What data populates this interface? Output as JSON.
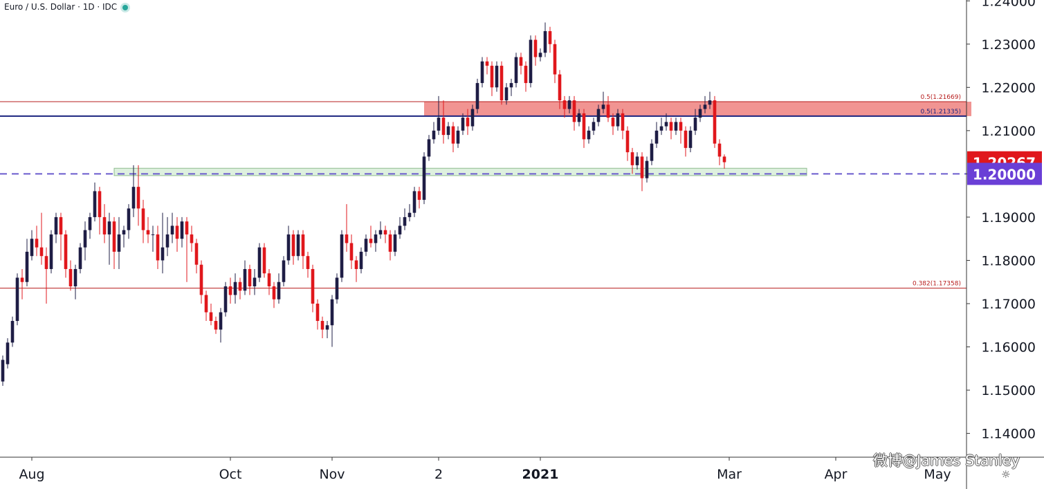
{
  "header": {
    "title": "Euro / U.S. Dollar · 1D · IDC"
  },
  "watermark": "微博@James Stanley",
  "colors": {
    "up": "#1e1d45",
    "down": "#e0171c",
    "resistance_zone": "#f08886",
    "support_zone": "#c8e6c9",
    "navy_line": "#1a237e",
    "dashed_line": "#6a5acd",
    "fib_line": "#b71c1c",
    "last_price_bg": "#e0171c",
    "level_bg": "#6a3fd6"
  },
  "chart_data": {
    "type": "candlestick",
    "title": "Euro / U.S. Dollar · 1D · IDC",
    "ylim": [
      1.1345,
      1.2402
    ],
    "y_ticks": [
      "1.24000",
      "1.23000",
      "1.22000",
      "1.21000",
      "1.20000",
      "1.19000",
      "1.18000",
      "1.17000",
      "1.16000",
      "1.15000",
      "1.14000"
    ],
    "x_ticks": [
      {
        "label": "Aug",
        "index": 6
      },
      {
        "label": "Oct",
        "index": 47
      },
      {
        "label": "Nov",
        "index": 68
      },
      {
        "label": "2",
        "index": 90
      },
      {
        "label": "2021",
        "index": 111
      },
      {
        "label": "Mar",
        "index": 150
      },
      {
        "label": "Apr",
        "index": 172
      },
      {
        "label": "May",
        "index": 193
      }
    ],
    "last_price": "1.20267",
    "key_level": "1.20000",
    "fib_lines": [
      {
        "label": "0.5(1.21669)",
        "value": 1.21669
      },
      {
        "label": "0.5(1.21335)",
        "value": 1.21335
      },
      {
        "label": "0.382(1.17358)",
        "value": 1.17358
      }
    ],
    "zones": [
      {
        "name": "resistance",
        "from": 1.21335,
        "to": 1.21669,
        "start_index": 87,
        "end_index": 200
      },
      {
        "name": "support",
        "from": 1.1996,
        "to": 1.2013,
        "start_index": 23,
        "end_index": 166
      }
    ],
    "horizontal_lines": [
      {
        "name": "navy-line",
        "value": 1.21335
      },
      {
        "name": "dashed-line",
        "value": 1.2
      }
    ],
    "candles": [
      [
        1.152,
        1.157,
        1.151,
        1.158
      ],
      [
        1.156,
        1.161,
        1.155,
        1.162
      ],
      [
        1.161,
        1.166,
        1.16,
        1.167
      ],
      [
        1.166,
        1.176,
        1.165,
        1.177
      ],
      [
        1.176,
        1.175,
        1.171,
        1.178
      ],
      [
        1.175,
        1.182,
        1.174,
        1.185
      ],
      [
        1.181,
        1.185,
        1.18,
        1.187
      ],
      [
        1.185,
        1.183,
        1.181,
        1.188
      ],
      [
        1.183,
        1.181,
        1.179,
        1.191
      ],
      [
        1.181,
        1.178,
        1.17,
        1.183
      ],
      [
        1.178,
        1.186,
        1.177,
        1.187
      ],
      [
        1.186,
        1.19,
        1.184,
        1.191
      ],
      [
        1.19,
        1.186,
        1.18,
        1.191
      ],
      [
        1.186,
        1.178,
        1.176,
        1.187
      ],
      [
        1.178,
        1.174,
        1.173,
        1.18
      ],
      [
        1.174,
        1.178,
        1.171,
        1.179
      ],
      [
        1.178,
        1.183,
        1.177,
        1.184
      ],
      [
        1.183,
        1.187,
        1.18,
        1.189
      ],
      [
        1.187,
        1.19,
        1.185,
        1.191
      ],
      [
        1.19,
        1.196,
        1.189,
        1.198
      ],
      [
        1.196,
        1.19,
        1.186,
        1.197
      ],
      [
        1.19,
        1.186,
        1.184,
        1.193
      ],
      [
        1.186,
        1.189,
        1.179,
        1.191
      ],
      [
        1.189,
        1.182,
        1.178,
        1.19
      ],
      [
        1.182,
        1.186,
        1.178,
        1.19
      ],
      [
        1.186,
        1.187,
        1.183,
        1.188
      ],
      [
        1.187,
        1.192,
        1.185,
        1.193
      ],
      [
        1.192,
        1.197,
        1.19,
        1.202
      ],
      [
        1.197,
        1.192,
        1.188,
        1.202
      ],
      [
        1.192,
        1.187,
        1.184,
        1.194
      ],
      [
        1.187,
        1.186,
        1.184,
        1.19
      ],
      [
        1.186,
        1.186,
        1.182,
        1.188
      ],
      [
        1.186,
        1.18,
        1.178,
        1.188
      ],
      [
        1.18,
        1.183,
        1.177,
        1.191
      ],
      [
        1.183,
        1.186,
        1.181,
        1.19
      ],
      [
        1.186,
        1.188,
        1.184,
        1.191
      ],
      [
        1.188,
        1.185,
        1.182,
        1.19
      ],
      [
        1.185,
        1.189,
        1.183,
        1.19
      ],
      [
        1.189,
        1.186,
        1.175,
        1.19
      ],
      [
        1.186,
        1.184,
        1.182,
        1.188
      ],
      [
        1.184,
        1.179,
        1.177,
        1.185
      ],
      [
        1.179,
        1.172,
        1.17,
        1.18
      ],
      [
        1.172,
        1.168,
        1.166,
        1.173
      ],
      [
        1.168,
        1.166,
        1.165,
        1.17
      ],
      [
        1.166,
        1.164,
        1.163,
        1.167
      ],
      [
        1.164,
        1.168,
        1.161,
        1.169
      ],
      [
        1.168,
        1.174,
        1.167,
        1.175
      ],
      [
        1.174,
        1.172,
        1.17,
        1.176
      ],
      [
        1.172,
        1.175,
        1.17,
        1.177
      ],
      [
        1.175,
        1.173,
        1.171,
        1.176
      ],
      [
        1.173,
        1.178,
        1.172,
        1.18
      ],
      [
        1.178,
        1.174,
        1.172,
        1.179
      ],
      [
        1.174,
        1.176,
        1.172,
        1.178
      ],
      [
        1.176,
        1.183,
        1.175,
        1.184
      ],
      [
        1.183,
        1.177,
        1.176,
        1.184
      ],
      [
        1.177,
        1.174,
        1.172,
        1.178
      ],
      [
        1.174,
        1.171,
        1.169,
        1.175
      ],
      [
        1.171,
        1.175,
        1.17,
        1.177
      ],
      [
        1.175,
        1.18,
        1.174,
        1.181
      ],
      [
        1.18,
        1.186,
        1.179,
        1.188
      ],
      [
        1.186,
        1.181,
        1.179,
        1.187
      ],
      [
        1.181,
        1.186,
        1.18,
        1.187
      ],
      [
        1.186,
        1.181,
        1.178,
        1.187
      ],
      [
        1.181,
        1.178,
        1.176,
        1.182
      ],
      [
        1.178,
        1.17,
        1.168,
        1.179
      ],
      [
        1.17,
        1.166,
        1.164,
        1.171
      ],
      [
        1.166,
        1.164,
        1.162,
        1.167
      ],
      [
        1.164,
        1.165,
        1.162,
        1.166
      ],
      [
        1.165,
        1.171,
        1.16,
        1.172
      ],
      [
        1.171,
        1.176,
        1.17,
        1.177
      ],
      [
        1.176,
        1.186,
        1.175,
        1.187
      ],
      [
        1.186,
        1.184,
        1.182,
        1.193
      ],
      [
        1.184,
        1.18,
        1.178,
        1.186
      ],
      [
        1.18,
        1.178,
        1.175,
        1.181
      ],
      [
        1.178,
        1.182,
        1.177,
        1.183
      ],
      [
        1.182,
        1.185,
        1.181,
        1.186
      ],
      [
        1.185,
        1.184,
        1.183,
        1.188
      ],
      [
        1.184,
        1.186,
        1.182,
        1.187
      ],
      [
        1.186,
        1.187,
        1.185,
        1.189
      ],
      [
        1.187,
        1.186,
        1.184,
        1.188
      ],
      [
        1.186,
        1.182,
        1.18,
        1.187
      ],
      [
        1.182,
        1.186,
        1.181,
        1.187
      ],
      [
        1.186,
        1.188,
        1.185,
        1.19
      ],
      [
        1.188,
        1.19,
        1.187,
        1.192
      ],
      [
        1.19,
        1.191,
        1.189,
        1.193
      ],
      [
        1.191,
        1.196,
        1.19,
        1.197
      ],
      [
        1.196,
        1.194,
        1.192,
        1.197
      ],
      [
        1.194,
        1.204,
        1.193,
        1.205
      ],
      [
        1.204,
        1.208,
        1.203,
        1.209
      ],
      [
        1.208,
        1.21,
        1.207,
        1.212
      ],
      [
        1.21,
        1.213,
        1.209,
        1.218
      ],
      [
        1.213,
        1.209,
        1.207,
        1.217
      ],
      [
        1.209,
        1.211,
        1.208,
        1.212
      ],
      [
        1.211,
        1.207,
        1.205,
        1.212
      ],
      [
        1.207,
        1.21,
        1.206,
        1.211
      ],
      [
        1.21,
        1.213,
        1.209,
        1.214
      ],
      [
        1.213,
        1.211,
        1.209,
        1.215
      ],
      [
        1.211,
        1.215,
        1.21,
        1.216
      ],
      [
        1.215,
        1.221,
        1.214,
        1.222
      ],
      [
        1.221,
        1.226,
        1.22,
        1.227
      ],
      [
        1.226,
        1.225,
        1.223,
        1.227
      ],
      [
        1.225,
        1.22,
        1.218,
        1.226
      ],
      [
        1.22,
        1.225,
        1.219,
        1.226
      ],
      [
        1.225,
        1.217,
        1.216,
        1.226
      ],
      [
        1.217,
        1.22,
        1.216,
        1.221
      ],
      [
        1.22,
        1.221,
        1.218,
        1.222
      ],
      [
        1.221,
        1.227,
        1.22,
        1.228
      ],
      [
        1.227,
        1.225,
        1.223,
        1.228
      ],
      [
        1.225,
        1.221,
        1.219,
        1.226
      ],
      [
        1.221,
        1.231,
        1.22,
        1.232
      ],
      [
        1.231,
        1.227,
        1.225,
        1.232
      ],
      [
        1.227,
        1.228,
        1.226,
        1.229
      ],
      [
        1.228,
        1.233,
        1.227,
        1.235
      ],
      [
        1.233,
        1.23,
        1.228,
        1.234
      ],
      [
        1.23,
        1.223,
        1.221,
        1.231
      ],
      [
        1.223,
        1.217,
        1.215,
        1.224
      ],
      [
        1.217,
        1.215,
        1.213,
        1.218
      ],
      [
        1.215,
        1.217,
        1.214,
        1.218
      ],
      [
        1.217,
        1.212,
        1.21,
        1.218
      ],
      [
        1.212,
        1.214,
        1.211,
        1.215
      ],
      [
        1.214,
        1.208,
        1.206,
        1.215
      ],
      [
        1.208,
        1.21,
        1.207,
        1.211
      ],
      [
        1.21,
        1.212,
        1.209,
        1.213
      ],
      [
        1.212,
        1.215,
        1.211,
        1.216
      ],
      [
        1.215,
        1.216,
        1.214,
        1.219
      ],
      [
        1.216,
        1.213,
        1.212,
        1.218
      ],
      [
        1.213,
        1.211,
        1.209,
        1.214
      ],
      [
        1.211,
        1.214,
        1.21,
        1.215
      ],
      [
        1.214,
        1.21,
        1.208,
        1.215
      ],
      [
        1.21,
        1.205,
        1.203,
        1.211
      ],
      [
        1.205,
        1.202,
        1.2,
        1.206
      ],
      [
        1.202,
        1.204,
        1.201,
        1.205
      ],
      [
        1.204,
        1.199,
        1.196,
        1.205
      ],
      [
        1.199,
        1.203,
        1.198,
        1.204
      ],
      [
        1.203,
        1.207,
        1.202,
        1.208
      ],
      [
        1.207,
        1.21,
        1.206,
        1.212
      ],
      [
        1.21,
        1.211,
        1.209,
        1.213
      ],
      [
        1.211,
        1.212,
        1.21,
        1.214
      ],
      [
        1.212,
        1.21,
        1.208,
        1.213
      ],
      [
        1.21,
        1.212,
        1.209,
        1.213
      ],
      [
        1.212,
        1.21,
        1.207,
        1.213
      ],
      [
        1.21,
        1.206,
        1.204,
        1.211
      ],
      [
        1.206,
        1.21,
        1.205,
        1.211
      ],
      [
        1.21,
        1.213,
        1.209,
        1.215
      ],
      [
        1.213,
        1.215,
        1.212,
        1.216
      ],
      [
        1.215,
        1.216,
        1.214,
        1.218
      ],
      [
        1.216,
        1.217,
        1.215,
        1.219
      ],
      [
        1.217,
        1.207,
        1.206,
        1.218
      ],
      [
        1.207,
        1.204,
        1.202,
        1.208
      ],
      [
        1.204,
        1.2027,
        1.2012,
        1.2045
      ]
    ]
  }
}
